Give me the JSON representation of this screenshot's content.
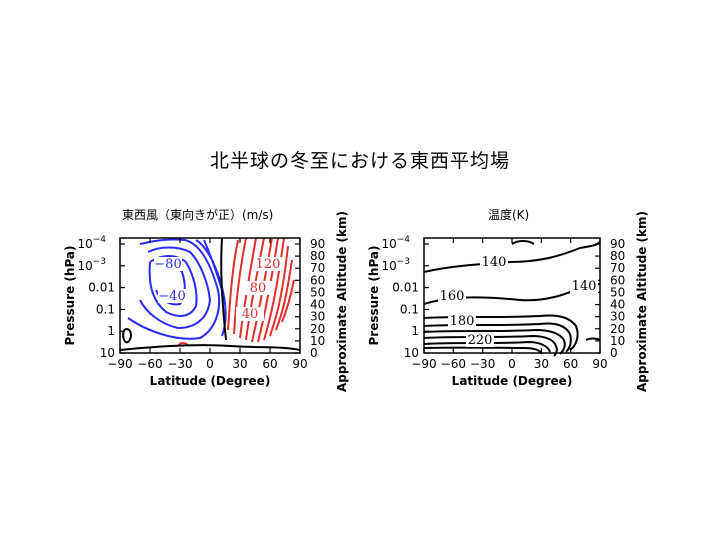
{
  "title": "北半球の冬至における東西平均場",
  "chart_data": [
    {
      "type": "contour",
      "title": "東西風（東向きが正）(m/s)",
      "xlabel": "Latitude (Degree)",
      "ylabel": "Pressure (hPa)",
      "y2label": "Approximate Altitude (km)",
      "x_ticks": [
        "−90",
        "−60",
        "−30",
        "0",
        "30",
        "60",
        "90"
      ],
      "y_ticks": [
        {
          "base": "10",
          "exp": "−4"
        },
        {
          "base": "10",
          "exp": "−3"
        },
        {
          "base": "0.01",
          "exp": ""
        },
        {
          "base": "0.1",
          "exp": ""
        },
        {
          "base": "1",
          "exp": ""
        },
        {
          "base": "10",
          "exp": ""
        }
      ],
      "y2_ticks": [
        "90",
        "80",
        "70",
        "60",
        "50",
        "40",
        "30",
        "20",
        "10",
        "0"
      ],
      "xlim": [
        -90,
        90
      ],
      "contour_labels": [
        {
          "text": "−80",
          "color": "#2a2af0"
        },
        {
          "text": "−40",
          "color": "#2a2af0"
        },
        {
          "text": "120",
          "color": "#e0302a"
        },
        {
          "text": "80",
          "color": "#e0302a"
        },
        {
          "text": "40",
          "color": "#e0302a"
        }
      ],
      "colors": {
        "negative": "#2a2af0",
        "positive": "#e0302a",
        "zero": "#000000"
      }
    },
    {
      "type": "contour",
      "title": "温度(K)",
      "xlabel": "Latitude (Degree)",
      "ylabel": "Pressure (hPa)",
      "y2label": "Approximate Altitude (km)",
      "x_ticks": [
        "−90",
        "−60",
        "−30",
        "0",
        "30",
        "60",
        "90"
      ],
      "y_ticks": [
        {
          "base": "10",
          "exp": "−4"
        },
        {
          "base": "10",
          "exp": "−3"
        },
        {
          "base": "0.01",
          "exp": ""
        },
        {
          "base": "0.1",
          "exp": ""
        },
        {
          "base": "1",
          "exp": ""
        },
        {
          "base": "10",
          "exp": ""
        }
      ],
      "y2_ticks": [
        "90",
        "80",
        "70",
        "60",
        "50",
        "40",
        "30",
        "20",
        "10",
        "0"
      ],
      "xlim": [
        -90,
        90
      ],
      "contour_labels": [
        {
          "text": "140",
          "color": "#000000"
        },
        {
          "text": "140",
          "color": "#000000"
        },
        {
          "text": "160",
          "color": "#000000"
        },
        {
          "text": "180",
          "color": "#000000"
        },
        {
          "text": "220",
          "color": "#000000"
        }
      ]
    }
  ]
}
